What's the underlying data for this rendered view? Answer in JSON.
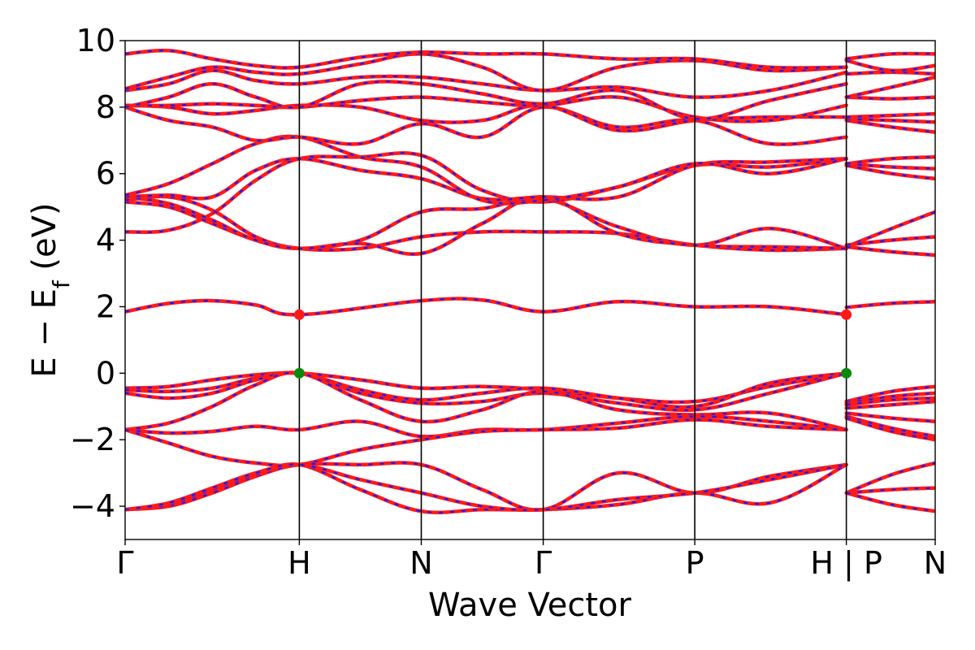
{
  "chart_data": {
    "type": "line",
    "title": "",
    "xlabel": "Wave Vector",
    "ylabel": "E − E",
    "ylabel_sub": "f",
    "ylabel_unit": " (eV)",
    "ylim": [
      -5,
      10
    ],
    "yticks": [
      -4,
      -2,
      0,
      2,
      4,
      6,
      8,
      10
    ],
    "ytick_labels": [
      "−4",
      "−2",
      "0",
      "2",
      "4",
      "6",
      "8",
      "10"
    ],
    "xlim": [
      0,
      4.65
    ],
    "kpoints": [
      {
        "label": "Γ",
        "x": 0.0
      },
      {
        "label": "H",
        "x": 1.0
      },
      {
        "label": "N",
        "x": 1.7
      },
      {
        "label": "Γ",
        "x": 2.4
      },
      {
        "label": "P",
        "x": 3.27
      },
      {
        "label": "H | P",
        "x": 4.14
      },
      {
        "label": "N",
        "x": 4.65
      }
    ],
    "segment_breaks": [
      4.14
    ],
    "grid": false,
    "legend": "none",
    "line_colors": {
      "band": "#ff1a1a",
      "band_dash": "#1a1aff"
    },
    "marker_colors": {
      "cbm": "#ff1a1a",
      "vbm": "#0a8a0a"
    },
    "markers": [
      {
        "name": "cbm",
        "x": 1.0,
        "y": 1.76
      },
      {
        "name": "cbm",
        "x": 4.14,
        "y": 1.76
      },
      {
        "name": "vbm",
        "x": 1.0,
        "y": 0.0
      },
      {
        "name": "vbm",
        "x": 4.14,
        "y": 0.0
      }
    ],
    "series": [
      {
        "segment": 1,
        "x": [
          0,
          0.25,
          0.5,
          0.75,
          1.0,
          1.7,
          2.05,
          2.4,
          2.83,
          3.27,
          3.7,
          4.14
        ],
        "y": [
          1.85,
          2.1,
          2.18,
          2.05,
          1.76,
          2.18,
          2.2,
          1.85,
          2.15,
          2.0,
          2.0,
          1.76
        ]
      },
      {
        "segment": 1,
        "x": [
          0,
          0.25,
          0.5,
          0.75,
          1.0,
          1.35,
          1.7,
          2.05,
          2.4,
          2.83,
          3.27,
          3.7,
          4.14
        ],
        "y": [
          -0.45,
          -0.4,
          -0.2,
          -0.05,
          0.0,
          -0.2,
          -0.45,
          -0.4,
          -0.5,
          -0.75,
          -0.85,
          -0.4,
          0.0
        ]
      },
      {
        "segment": 1,
        "x": [
          0,
          0.25,
          0.5,
          0.75,
          1.0,
          1.35,
          1.7,
          2.05,
          2.4,
          2.83,
          3.27,
          3.7,
          4.14
        ],
        "y": [
          -0.5,
          -0.55,
          -0.45,
          -0.15,
          0.0,
          -0.5,
          -0.8,
          -0.6,
          -0.45,
          -0.75,
          -1.0,
          -0.3,
          0.0
        ]
      },
      {
        "segment": 1,
        "x": [
          0,
          0.25,
          0.5,
          0.75,
          1.0,
          1.35,
          1.7,
          2.05,
          2.4,
          2.83,
          3.27,
          3.7,
          4.14
        ],
        "y": [
          -0.6,
          -0.75,
          -0.6,
          -0.2,
          0.0,
          -0.6,
          -0.9,
          -0.85,
          -0.6,
          -0.9,
          -1.1,
          -0.6,
          0.0
        ]
      },
      {
        "segment": 1,
        "x": [
          0,
          0.25,
          0.5,
          0.75,
          1.0,
          1.35,
          1.7,
          2.05,
          2.4,
          2.83,
          3.27,
          3.7,
          4.14
        ],
        "y": [
          -1.7,
          -1.5,
          -1.0,
          -0.35,
          0.0,
          -0.8,
          -1.45,
          -1.1,
          -0.55,
          -1.1,
          -1.25,
          -1.2,
          -1.7
        ]
      },
      {
        "segment": 1,
        "x": [
          0,
          0.25,
          0.5,
          0.75,
          1.0,
          1.35,
          1.7,
          2.05,
          2.4,
          2.83,
          3.27,
          3.7,
          4.14
        ],
        "y": [
          -1.7,
          -1.8,
          -1.75,
          -1.6,
          -1.7,
          -1.45,
          -1.9,
          -1.7,
          -1.7,
          -1.5,
          -1.3,
          -1.45,
          -1.7
        ]
      },
      {
        "segment": 1,
        "x": [
          0,
          0.25,
          0.5,
          0.75,
          1.0,
          1.35,
          1.7,
          2.05,
          2.4,
          2.83,
          3.27,
          3.7,
          4.14
        ],
        "y": [
          -1.7,
          -2.1,
          -2.5,
          -2.7,
          -2.75,
          -2.3,
          -2.0,
          -1.75,
          -1.7,
          -1.65,
          -1.4,
          -1.6,
          -1.7
        ]
      },
      {
        "segment": 1,
        "x": [
          0,
          0.25,
          0.5,
          0.75,
          1.0,
          1.35,
          1.7,
          2.05,
          2.4,
          2.83,
          3.27,
          3.7,
          4.14
        ],
        "y": [
          -4.1,
          -4.0,
          -3.6,
          -3.1,
          -2.75,
          -2.75,
          -2.75,
          -3.5,
          -4.1,
          -3.0,
          -3.6,
          -3.1,
          -2.75
        ]
      },
      {
        "segment": 1,
        "x": [
          0,
          0.25,
          0.5,
          0.75,
          1.0,
          1.35,
          1.7,
          2.05,
          2.4,
          2.83,
          3.27,
          3.7,
          4.14
        ],
        "y": [
          -4.1,
          -3.95,
          -3.5,
          -3.05,
          -2.75,
          -3.5,
          -4.15,
          -4.1,
          -4.1,
          -3.95,
          -3.6,
          -3.9,
          -2.75
        ]
      },
      {
        "segment": 1,
        "x": [
          0,
          0.25,
          0.5,
          0.75,
          1.0,
          1.35,
          1.7,
          2.05,
          2.4,
          2.83,
          3.27,
          3.7,
          4.14
        ],
        "y": [
          -4.1,
          -3.9,
          -3.45,
          -3.0,
          -2.75,
          -3.2,
          -3.6,
          -4.0,
          -4.1,
          -3.8,
          -3.6,
          -3.2,
          -2.75
        ]
      },
      {
        "segment": 1,
        "x": [
          0,
          0.25,
          0.5,
          0.75,
          1.0,
          1.35,
          1.7,
          2.05,
          2.4,
          2.83,
          3.27,
          3.7,
          4.14
        ],
        "y": [
          4.25,
          4.3,
          4.8,
          5.8,
          6.45,
          6.5,
          6.55,
          5.5,
          5.15,
          5.6,
          6.25,
          6.2,
          6.45
        ]
      },
      {
        "segment": 1,
        "x": [
          0,
          0.25,
          0.5,
          0.75,
          1.0,
          1.35,
          1.7,
          2.05,
          2.4,
          2.83,
          3.27,
          3.7,
          4.14
        ],
        "y": [
          5.15,
          5.0,
          4.5,
          4.0,
          3.75,
          4.0,
          4.85,
          4.95,
          5.25,
          4.4,
          3.85,
          4.35,
          3.75
        ]
      },
      {
        "segment": 1,
        "x": [
          0,
          0.25,
          0.5,
          0.75,
          1.0,
          1.35,
          1.7,
          2.05,
          2.4,
          2.83,
          3.27,
          3.7,
          4.14
        ],
        "y": [
          5.2,
          5.3,
          4.9,
          4.1,
          3.75,
          3.75,
          4.1,
          4.25,
          4.25,
          4.2,
          3.85,
          3.7,
          3.75
        ]
      },
      {
        "segment": 1,
        "x": [
          0,
          0.25,
          0.5,
          0.75,
          1.0,
          1.35,
          1.7,
          2.05,
          2.4,
          2.83,
          3.27,
          3.7,
          4.14
        ],
        "y": [
          5.3,
          5.1,
          4.6,
          4.0,
          3.75,
          3.9,
          3.6,
          4.5,
          5.3,
          4.2,
          3.85,
          3.8,
          3.75
        ]
      },
      {
        "segment": 1,
        "x": [
          0,
          0.25,
          0.5,
          0.75,
          1.0,
          1.35,
          1.7,
          2.05,
          2.4,
          2.83,
          3.27,
          3.7,
          4.14
        ],
        "y": [
          5.3,
          5.35,
          5.3,
          6.1,
          6.45,
          6.1,
          5.85,
          5.25,
          5.3,
          5.3,
          6.25,
          6.35,
          6.45
        ]
      },
      {
        "segment": 1,
        "x": [
          0,
          0.25,
          0.5,
          0.75,
          1.0,
          1.35,
          1.7,
          2.05,
          2.4,
          2.83,
          3.27,
          3.7,
          4.14
        ],
        "y": [
          5.35,
          5.7,
          6.3,
          6.9,
          7.1,
          6.5,
          6.2,
          5.2,
          5.2,
          5.6,
          6.3,
          6.0,
          6.45
        ]
      },
      {
        "segment": 1,
        "x": [
          0,
          0.25,
          0.5,
          0.75,
          1.0,
          1.35,
          1.7,
          2.05,
          2.4,
          2.83,
          3.27,
          3.7,
          4.14
        ],
        "y": [
          8.0,
          7.6,
          7.4,
          7.0,
          7.1,
          6.9,
          7.5,
          7.1,
          8.0,
          7.4,
          7.6,
          6.9,
          7.1
        ]
      },
      {
        "segment": 1,
        "x": [
          0,
          0.25,
          0.5,
          0.75,
          1.0,
          1.35,
          1.7,
          2.05,
          2.4,
          2.83,
          3.27,
          3.7,
          4.14
        ],
        "y": [
          8.05,
          8.0,
          7.8,
          7.9,
          8.05,
          8.0,
          7.6,
          7.6,
          8.05,
          7.3,
          7.6,
          7.7,
          7.7
        ]
      },
      {
        "segment": 1,
        "x": [
          0,
          0.25,
          0.5,
          0.75,
          1.0,
          1.35,
          1.7,
          2.05,
          2.4,
          2.83,
          3.27,
          3.7,
          4.14
        ],
        "y": [
          8.05,
          8.05,
          8.1,
          8.05,
          8.0,
          8.2,
          8.3,
          8.15,
          8.05,
          8.3,
          7.7,
          7.6,
          8.05
        ]
      },
      {
        "segment": 1,
        "x": [
          0,
          0.25,
          0.5,
          0.75,
          1.0,
          1.35,
          1.7,
          2.05,
          2.4,
          2.83,
          3.27,
          3.7,
          4.14
        ],
        "y": [
          8.0,
          8.3,
          8.7,
          8.3,
          8.0,
          8.7,
          8.7,
          8.4,
          8.1,
          8.5,
          7.65,
          8.2,
          8.7
        ]
      },
      {
        "segment": 1,
        "x": [
          0,
          0.25,
          0.5,
          0.75,
          1.0,
          1.35,
          1.7,
          2.05,
          2.4,
          2.83,
          3.27,
          3.7,
          4.14
        ],
        "y": [
          8.5,
          8.7,
          9.1,
          8.8,
          8.7,
          8.9,
          8.9,
          8.7,
          8.5,
          8.6,
          8.3,
          8.5,
          9.05
        ]
      },
      {
        "segment": 1,
        "x": [
          0,
          0.25,
          0.5,
          0.75,
          1.0,
          1.35,
          1.7,
          2.05,
          2.4,
          2.83,
          3.27,
          3.7,
          4.14
        ],
        "y": [
          8.55,
          8.9,
          9.2,
          9.05,
          9.0,
          9.3,
          9.6,
          9.2,
          8.5,
          9.2,
          9.4,
          9.1,
          9.2
        ]
      },
      {
        "segment": 1,
        "x": [
          0,
          0.25,
          0.5,
          0.75,
          1.0,
          1.35,
          1.7,
          2.05,
          2.4,
          2.83,
          3.27,
          3.7,
          4.14
        ],
        "y": [
          9.6,
          9.7,
          9.45,
          9.25,
          9.2,
          9.5,
          9.65,
          9.6,
          9.6,
          9.45,
          9.45,
          9.2,
          9.2
        ]
      },
      {
        "segment": 2,
        "x": [
          4.14,
          4.4,
          4.65
        ],
        "y": [
          1.98,
          2.1,
          2.15
        ]
      },
      {
        "segment": 2,
        "x": [
          4.14,
          4.4,
          4.65
        ],
        "y": [
          -0.85,
          -0.55,
          -0.4
        ]
      },
      {
        "segment": 2,
        "x": [
          4.14,
          4.4,
          4.65
        ],
        "y": [
          -0.9,
          -0.7,
          -0.6
        ]
      },
      {
        "segment": 2,
        "x": [
          4.14,
          4.4,
          4.65
        ],
        "y": [
          -0.95,
          -0.8,
          -0.75
        ]
      },
      {
        "segment": 2,
        "x": [
          4.14,
          4.4,
          4.65
        ],
        "y": [
          -1.05,
          -0.95,
          -0.85
        ]
      },
      {
        "segment": 2,
        "x": [
          4.14,
          4.4,
          4.65
        ],
        "y": [
          -1.2,
          -1.35,
          -1.45
        ]
      },
      {
        "segment": 2,
        "x": [
          4.14,
          4.4,
          4.65
        ],
        "y": [
          -1.3,
          -1.65,
          -1.9
        ]
      },
      {
        "segment": 2,
        "x": [
          4.14,
          4.4,
          4.65
        ],
        "y": [
          -1.35,
          -1.75,
          -2.0
        ]
      },
      {
        "segment": 2,
        "x": [
          4.14,
          4.4,
          4.65
        ],
        "y": [
          -3.6,
          -3.05,
          -2.7
        ]
      },
      {
        "segment": 2,
        "x": [
          4.14,
          4.4,
          4.65
        ],
        "y": [
          -3.6,
          -3.5,
          -3.45
        ]
      },
      {
        "segment": 2,
        "x": [
          4.14,
          4.4,
          4.65
        ],
        "y": [
          -3.6,
          -3.95,
          -4.15
        ]
      },
      {
        "segment": 2,
        "x": [
          4.14,
          4.4,
          4.65
        ],
        "y": [
          3.8,
          4.35,
          4.85
        ]
      },
      {
        "segment": 2,
        "x": [
          4.14,
          4.4,
          4.65
        ],
        "y": [
          3.85,
          4.0,
          4.1
        ]
      },
      {
        "segment": 2,
        "x": [
          4.14,
          4.4,
          4.65
        ],
        "y": [
          3.8,
          3.65,
          3.55
        ]
      },
      {
        "segment": 2,
        "x": [
          4.14,
          4.4,
          4.65
        ],
        "y": [
          6.3,
          6.2,
          6.15
        ]
      },
      {
        "segment": 2,
        "x": [
          4.14,
          4.4,
          4.65
        ],
        "y": [
          6.25,
          6.0,
          5.85
        ]
      },
      {
        "segment": 2,
        "x": [
          4.14,
          4.4,
          4.65
        ],
        "y": [
          6.3,
          6.45,
          6.5
        ]
      },
      {
        "segment": 2,
        "x": [
          4.14,
          4.4,
          4.65
        ],
        "y": [
          7.6,
          7.4,
          7.25
        ]
      },
      {
        "segment": 2,
        "x": [
          4.14,
          4.4,
          4.65
        ],
        "y": [
          7.65,
          7.6,
          7.55
        ]
      },
      {
        "segment": 2,
        "x": [
          4.14,
          4.4,
          4.65
        ],
        "y": [
          7.7,
          7.75,
          7.8
        ]
      },
      {
        "segment": 2,
        "x": [
          4.14,
          4.4,
          4.65
        ],
        "y": [
          8.3,
          8.25,
          8.3
        ]
      },
      {
        "segment": 2,
        "x": [
          4.14,
          4.4,
          4.65
        ],
        "y": [
          8.3,
          8.6,
          8.9
        ]
      },
      {
        "segment": 2,
        "x": [
          4.14,
          4.4,
          4.65
        ],
        "y": [
          9.0,
          9.05,
          9.0
        ]
      },
      {
        "segment": 2,
        "x": [
          4.14,
          4.4,
          4.65
        ],
        "y": [
          9.4,
          9.1,
          9.25
        ]
      },
      {
        "segment": 2,
        "x": [
          4.14,
          4.4,
          4.65
        ],
        "y": [
          9.45,
          9.6,
          9.6
        ]
      }
    ]
  }
}
